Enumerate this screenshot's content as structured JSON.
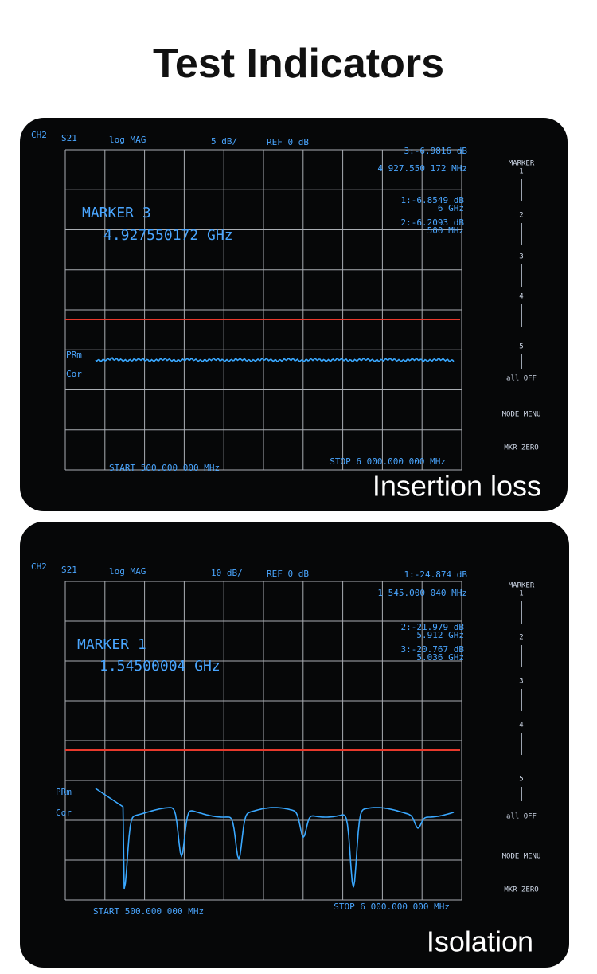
{
  "title": "Test Indicators",
  "panels": [
    {
      "header": {
        "channel": "CH2",
        "param": "S21",
        "format": "log MAG",
        "scale": "5 dB/",
        "ref": "REF 0 dB",
        "active_readout": "3:-6.9816 dB",
        "active_freq": "4 927.550 172 MHz"
      },
      "marker_title": "MARKER 3",
      "marker_value": "4.927550172 GHz",
      "markers": [
        {
          "readout": "1:-6.8549 dB",
          "freq": "6 GHz"
        },
        {
          "readout": "2:-6.2093 dB",
          "freq": "500 MHz"
        }
      ],
      "side_labels": [
        "PRm",
        "Cor"
      ],
      "start": "START 500.000 000 MHz",
      "stop": "STOP 6 000.000 000 MHz",
      "softkeys": [
        "MARKER",
        "1",
        "2",
        "3",
        "4",
        "5",
        "all OFF",
        "MODE MENU",
        "MKR ZERO"
      ],
      "caption": "Insertion loss"
    },
    {
      "header": {
        "channel": "CH2",
        "param": "S21",
        "format": "log MAG",
        "scale": "10 dB/",
        "ref": "REF 0 dB",
        "active_readout": "1:-24.874 dB",
        "active_freq": "1 545.000 040 MHz"
      },
      "marker_title": "MARKER 1",
      "marker_value": "1.54500004 GHz",
      "markers": [
        {
          "readout": "2:-21.979 dB",
          "freq": "5.912 GHz"
        },
        {
          "readout": "3:-20.767 dB",
          "freq": "5.036 GHz"
        }
      ],
      "side_labels": [
        "PRm",
        "Cor"
      ],
      "start": "START 500.000 000 MHz",
      "stop": "STOP 6 000.000 000 MHz",
      "softkeys": [
        "MARKER",
        "1",
        "2",
        "3",
        "4",
        "5",
        "all OFF",
        "MODE MENU",
        "MKR ZERO"
      ],
      "caption": "Isolation"
    }
  ]
}
